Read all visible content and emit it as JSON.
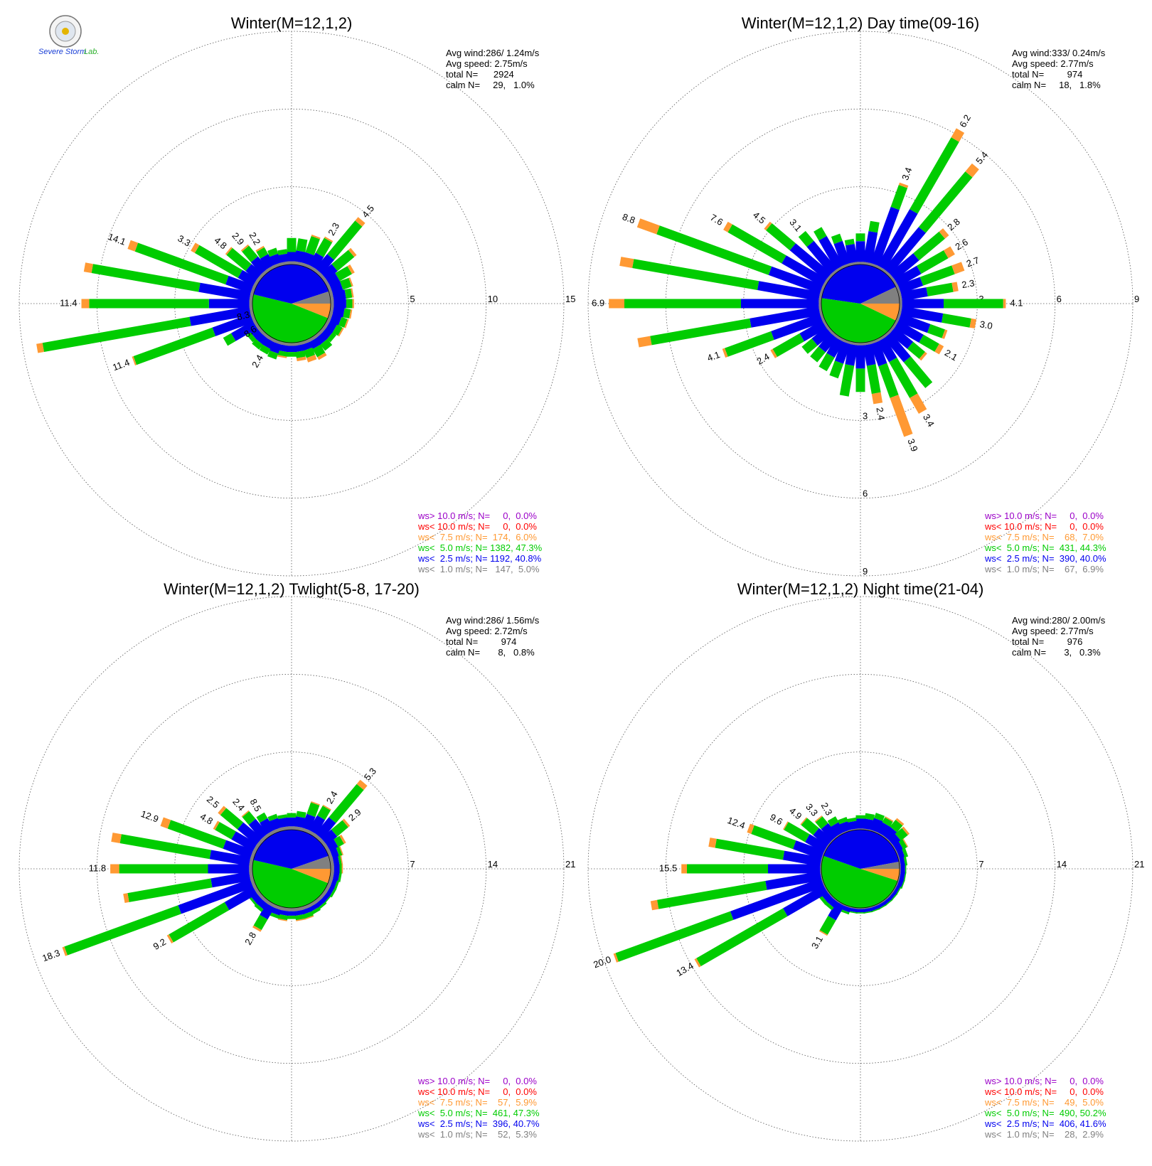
{
  "logo": {
    "text_main": "Severe Storm",
    "text_lab": "Lab."
  },
  "colors": {
    "ws_gt_10": "#9b00c8",
    "ws_lt_10": "#ff0000",
    "ws_lt_7_5": "#ff9933",
    "ws_lt_5": "#00cc00",
    "ws_lt_2_5": "#0000ee",
    "ws_lt_1": "#808080"
  },
  "chart_data": [
    {
      "type": "polar-bar",
      "title": "Winter(M=12,1,2)",
      "info": [
        "Avg wind:286/ 1.24m/s",
        "Avg speed: 2.75m/s",
        "total N=      2924",
        "calm N=     29,   1.0%"
      ],
      "rmax": 15,
      "ring_labels": [
        "5",
        "10",
        "15"
      ],
      "legend": [
        "ws> 10.0 m/s; N=     0,  0.0%",
        "ws< 10.0 m/s; N=     0,  0.0%",
        "ws<  7.5 m/s; N=  174,  6.0%",
        "ws<  5.0 m/s; N= 1382, 47.3%",
        "ws<  2.5 m/s; N= 1192, 40.8%",
        "ws<  1.0 m/s; N=   147,  5.0%"
      ],
      "pie": {
        "orange": 6.0,
        "green": 47.3,
        "blue": 40.8,
        "gray": 5.0
      },
      "direction_labels_deg": [
        30,
        40,
        300,
        310,
        320,
        330,
        235,
        250,
        270,
        290,
        255,
        210
      ],
      "bar_labels": [
        "2.3",
        "4.5",
        "3.3",
        "4.8",
        "2.9",
        "2.2",
        "8.6",
        "11.4",
        "11.4",
        "14.1",
        "8.3",
        "2.4"
      ],
      "directions": [
        0,
        10,
        20,
        30,
        40,
        50,
        60,
        70,
        80,
        90,
        100,
        110,
        120,
        130,
        140,
        150,
        160,
        170,
        180,
        190,
        200,
        210,
        220,
        230,
        240,
        250,
        260,
        270,
        280,
        290,
        300,
        310,
        320,
        330,
        340,
        350
      ],
      "bars": [
        [
          0.2,
          0.6,
          0.9,
          0
        ],
        [
          0.2,
          0.7,
          0.8,
          0
        ],
        [
          0.2,
          0.7,
          1.1,
          0.1
        ],
        [
          0.2,
          0.9,
          1.1,
          0.1
        ],
        [
          0.2,
          1.2,
          2.8,
          0.3
        ],
        [
          0.2,
          0.9,
          1.4,
          0.2
        ],
        [
          0.2,
          0.7,
          0.9,
          0.2
        ],
        [
          0.2,
          0.7,
          0.6,
          0.1
        ],
        [
          0.2,
          0.8,
          0.4,
          0.1
        ],
        [
          0.2,
          0.8,
          0.4,
          0.1
        ],
        [
          0.2,
          0.7,
          0.4,
          0.1
        ],
        [
          0.2,
          0.6,
          0.4,
          0.1
        ],
        [
          0.2,
          0.5,
          0.4,
          0.1
        ],
        [
          0.2,
          0.5,
          0.3,
          0
        ],
        [
          0.2,
          0.5,
          0.5,
          0
        ],
        [
          0.2,
          0.5,
          0.6,
          0.2
        ],
        [
          0.2,
          0.4,
          0.5,
          0.3
        ],
        [
          0.2,
          0.4,
          0.4,
          0.2
        ],
        [
          0.2,
          0.4,
          0.3,
          0
        ],
        [
          0.2,
          0.4,
          0.3,
          0.1
        ],
        [
          0.2,
          0.6,
          0.4,
          0
        ],
        [
          0.2,
          0.5,
          0.4,
          0
        ],
        [
          0.2,
          0.5,
          0.4,
          0
        ],
        [
          0.2,
          0.5,
          0.3,
          0
        ],
        [
          0.2,
          1.6,
          0.6,
          0
        ],
        [
          0.2,
          2.6,
          5.4,
          0.1
        ],
        [
          0.2,
          3.9,
          9.6,
          0.4
        ],
        [
          0.2,
          2.6,
          7.7,
          0.5
        ],
        [
          0.2,
          3.3,
          7.0,
          0.5
        ],
        [
          0.2,
          1.7,
          6.2,
          0.5
        ],
        [
          0.2,
          1.1,
          3.2,
          0.3
        ],
        [
          0.2,
          0.9,
          1.6,
          0.1
        ],
        [
          0.2,
          1.0,
          0.9,
          0.1
        ],
        [
          0.2,
          0.8,
          0.5,
          0.1
        ],
        [
          0.2,
          0.6,
          0.4,
          0
        ],
        [
          0.2,
          0.5,
          0.3,
          0
        ]
      ]
    },
    {
      "type": "polar-bar",
      "title": "Winter(M=12,1,2) Day time(09-16)",
      "info": [
        "Avg wind:333/ 0.24m/s",
        "Avg speed: 2.77m/s",
        "total N=         974",
        "calm N=     18,   1.8%"
      ],
      "rmax": 9,
      "ring_labels": [
        "3",
        "6",
        "9"
      ],
      "legend": [
        "ws> 10.0 m/s; N=     0,  0.0%",
        "ws< 10.0 m/s; N=     0,  0.0%",
        "ws<  7.5 m/s; N=    68,  7.0%",
        "ws<  5.0 m/s; N=  431, 44.3%",
        "ws<  2.5 m/s; N=  390, 40.0%",
        "ws<  1.0 m/s; N=    67,  6.9%"
      ],
      "pie": {
        "orange": 7.0,
        "green": 44.3,
        "blue": 40.0,
        "gray": 6.9
      },
      "direction_labels_deg": [
        20,
        30,
        40,
        50,
        60,
        70,
        80,
        90,
        100,
        120,
        150,
        160,
        170,
        240,
        250,
        270,
        290,
        300,
        310,
        320
      ],
      "bar_labels": [
        "3.4",
        "6.2",
        "5.4",
        "2.8",
        "2.6",
        "2.7",
        "2.3",
        "4.1",
        "3.0",
        "2.1",
        "3.4",
        "3.9",
        "2.4",
        "2.4",
        "4.1",
        "6.9",
        "8.8",
        "7.6",
        "4.5",
        "3.1"
      ],
      "directions": [
        0,
        10,
        20,
        30,
        40,
        50,
        60,
        70,
        80,
        90,
        100,
        110,
        120,
        130,
        140,
        150,
        160,
        170,
        180,
        190,
        200,
        210,
        220,
        230,
        240,
        250,
        260,
        270,
        280,
        290,
        300,
        310,
        320,
        330,
        340,
        350
      ],
      "bars": [
        [
          0.1,
          0.8,
          0.3,
          0
        ],
        [
          0.1,
          1.2,
          0.4,
          0
        ],
        [
          0.1,
          2.3,
          0.9,
          0.1
        ],
        [
          0.1,
          2.5,
          3.2,
          0.4
        ],
        [
          0.1,
          2.1,
          2.8,
          0.4
        ],
        [
          0.1,
          1.2,
          1.3,
          0.2
        ],
        [
          0.1,
          1.0,
          1.2,
          0.3
        ],
        [
          0.1,
          0.9,
          1.3,
          0.4
        ],
        [
          0.1,
          1.0,
          1.0,
          0.2
        ],
        [
          0.1,
          1.6,
          2.3,
          0.1
        ],
        [
          0.1,
          1.6,
          1.1,
          0.2
        ],
        [
          0.1,
          1.2,
          0.6,
          0.1
        ],
        [
          0.1,
          1.1,
          0.7,
          0.2
        ],
        [
          0.1,
          0.9,
          0.6,
          0.1
        ],
        [
          0.1,
          1.2,
          1.3,
          0
        ],
        [
          0.1,
          0.9,
          1.6,
          0.7
        ],
        [
          0.1,
          0.9,
          1.3,
          1.6
        ],
        [
          0.1,
          0.8,
          1.1,
          0.4
        ],
        [
          0.1,
          0.9,
          0.9,
          0
        ],
        [
          0.1,
          0.8,
          1.2,
          0
        ],
        [
          0.1,
          0.8,
          0.6,
          0
        ],
        [
          0.1,
          0.7,
          0.6,
          0
        ],
        [
          0.1,
          0.7,
          0.5,
          0
        ],
        [
          0.1,
          0.7,
          0.5,
          0
        ],
        [
          0.1,
          1.0,
          1.2,
          0.1
        ],
        [
          0.1,
          2.0,
          1.9,
          0.1
        ],
        [
          0.1,
          2.7,
          3.9,
          0.5
        ],
        [
          0.1,
          3.0,
          4.5,
          0.6
        ],
        [
          0.1,
          2.4,
          4.9,
          0.5
        ],
        [
          0.1,
          2.1,
          4.6,
          0.8
        ],
        [
          0.1,
          1.8,
          2.4,
          0.2
        ],
        [
          0.1,
          1.8,
          1.2,
          0.1
        ],
        [
          0.1,
          1.4,
          0.5,
          0
        ],
        [
          0.1,
          1.3,
          0.4,
          0
        ],
        [
          0.1,
          0.9,
          0.3,
          0
        ],
        [
          0.1,
          0.7,
          0.2,
          0
        ]
      ]
    },
    {
      "type": "polar-bar",
      "title": "Winter(M=12,1,2) Twlight(5-8, 17-20)",
      "info": [
        "Avg wind:286/ 1.56m/s",
        "Avg speed: 2.72m/s",
        "total N=         974",
        "calm N=       8,   0.8%"
      ],
      "rmax": 21,
      "ring_labels": [
        "7",
        "14",
        "21"
      ],
      "legend": [
        "ws> 10.0 m/s; N=     0,  0.0%",
        "ws< 10.0 m/s; N=     0,  0.0%",
        "ws<  7.5 m/s; N=    57,  5.9%",
        "ws<  5.0 m/s; N=  461, 47.3%",
        "ws<  2.5 m/s; N=  396, 40.7%",
        "ws<  1.0 m/s; N=    52,  5.3%"
      ],
      "pie": {
        "orange": 5.9,
        "green": 47.3,
        "blue": 40.7,
        "gray": 5.3
      },
      "direction_labels_deg": [
        30,
        40,
        50,
        300,
        310,
        320,
        330,
        290,
        270,
        250,
        240,
        210
      ],
      "bar_labels": [
        "2.4",
        "5.3",
        "2.9",
        "4.8",
        "2.5",
        "2.4",
        "8.5",
        "12.9",
        "11.8",
        "18.3",
        "9.2",
        "2.8"
      ],
      "directions": [
        0,
        10,
        20,
        30,
        40,
        50,
        60,
        70,
        80,
        90,
        100,
        110,
        120,
        130,
        140,
        150,
        160,
        170,
        180,
        190,
        200,
        210,
        220,
        230,
        240,
        250,
        260,
        270,
        280,
        290,
        300,
        310,
        320,
        330,
        340,
        350
      ],
      "bars": [
        [
          0.3,
          0.8,
          0.4,
          0
        ],
        [
          0.3,
          0.9,
          0.5,
          0
        ],
        [
          0.3,
          1.3,
          1.1,
          0.1
        ],
        [
          0.3,
          1.5,
          1.0,
          0.1
        ],
        [
          0.3,
          1.9,
          3.9,
          0.5
        ],
        [
          0.3,
          1.2,
          1.3,
          0.2
        ],
        [
          0.3,
          0.8,
          0.6,
          0.2
        ],
        [
          0.3,
          0.6,
          0.3,
          0.1
        ],
        [
          0.3,
          0.5,
          0.2,
          0.1
        ],
        [
          0.3,
          0.5,
          0.2,
          0.1
        ],
        [
          0.3,
          0.5,
          0.2,
          0
        ],
        [
          0.3,
          0.4,
          0.2,
          0
        ],
        [
          0.3,
          0.4,
          0.2,
          0
        ],
        [
          0.3,
          0.4,
          0.1,
          0
        ],
        [
          0.3,
          0.4,
          0.2,
          0
        ],
        [
          0.3,
          0.4,
          0.3,
          0
        ],
        [
          0.3,
          0.4,
          0.4,
          0.1
        ],
        [
          0.3,
          0.4,
          0.4,
          0.1
        ],
        [
          0.3,
          0.4,
          0.3,
          0
        ],
        [
          0.3,
          0.4,
          0.4,
          0.1
        ],
        [
          0.3,
          0.5,
          0.3,
          0
        ],
        [
          0.3,
          1.2,
          1.1,
          0.2
        ],
        [
          0.3,
          0.6,
          0.3,
          0
        ],
        [
          0.3,
          0.6,
          0.2,
          0
        ],
        [
          0.3,
          2.9,
          5.8,
          0.2
        ],
        [
          0.3,
          6.9,
          10.9,
          0.2
        ],
        [
          0.3,
          3.5,
          7.6,
          0.4
        ],
        [
          0.3,
          3.7,
          8.0,
          0.8
        ],
        [
          0.3,
          3.6,
          8.2,
          0.8
        ],
        [
          0.3,
          2.6,
          5.3,
          0.7
        ],
        [
          0.3,
          2.2,
          1.7,
          0.2
        ],
        [
          0.3,
          2.2,
          2.0,
          0.3
        ],
        [
          0.3,
          1.7,
          0.9,
          0.1
        ],
        [
          0.3,
          1.2,
          0.6,
          0
        ],
        [
          0.3,
          0.9,
          0.4,
          0
        ],
        [
          0.3,
          0.8,
          0.3,
          0
        ]
      ]
    },
    {
      "type": "polar-bar",
      "title": "Winter(M=12,1,2) Night time(21-04)",
      "info": [
        "Avg wind:280/ 2.00m/s",
        "Avg speed: 2.77m/s",
        "total N=         976",
        "calm N=       3,   0.3%"
      ],
      "rmax": 21,
      "ring_labels": [
        "7",
        "14",
        "21"
      ],
      "legend": [
        "ws> 10.0 m/s; N=     0,  0.0%",
        "ws< 10.0 m/s; N=     0,  0.0%",
        "ws<  7.5 m/s; N=    49,  5.0%",
        "ws<  5.0 m/s; N=  490, 50.2%",
        "ws<  2.5 m/s; N=  406, 41.6%",
        "ws<  1.0 m/s; N=    28,  2.9%"
      ],
      "pie": {
        "orange": 5.0,
        "green": 50.2,
        "blue": 41.6,
        "gray": 2.9
      },
      "direction_labels_deg": [
        310,
        320,
        330,
        300,
        290,
        270,
        250,
        240,
        210
      ],
      "bar_labels": [
        "4.9",
        "3.3",
        "2.3",
        "9.6",
        "12.4",
        "15.5",
        "20.0",
        "13.4",
        "3.1"
      ],
      "directions": [
        0,
        10,
        20,
        30,
        40,
        50,
        60,
        70,
        80,
        90,
        100,
        110,
        120,
        130,
        140,
        150,
        160,
        170,
        180,
        190,
        200,
        210,
        220,
        230,
        240,
        250,
        260,
        270,
        280,
        290,
        300,
        310,
        320,
        330,
        340,
        350
      ],
      "bars": [
        [
          0.1,
          0.9,
          0.3,
          0
        ],
        [
          0.1,
          0.9,
          0.5,
          0
        ],
        [
          0.1,
          1.1,
          0.5,
          0
        ],
        [
          0.1,
          1.0,
          0.5,
          0.1
        ],
        [
          0.1,
          1.0,
          0.8,
          0.2
        ],
        [
          0.1,
          0.8,
          0.8,
          0.2
        ],
        [
          0.1,
          0.6,
          0.4,
          0.1
        ],
        [
          0.1,
          0.5,
          0.3,
          0
        ],
        [
          0.1,
          0.4,
          0.2,
          0
        ],
        [
          0.1,
          0.4,
          0.1,
          0
        ],
        [
          0.1,
          0.4,
          0.1,
          0
        ],
        [
          0.1,
          0.4,
          0.1,
          0
        ],
        [
          0.1,
          0.3,
          0.1,
          0
        ],
        [
          0.1,
          0.3,
          0.1,
          0
        ],
        [
          0.1,
          0.3,
          0.1,
          0
        ],
        [
          0.1,
          0.3,
          0.1,
          0
        ],
        [
          0.1,
          0.3,
          0.1,
          0
        ],
        [
          0.1,
          0.3,
          0.1,
          0
        ],
        [
          0.1,
          0.3,
          0.1,
          0
        ],
        [
          0.1,
          0.3,
          0.1,
          0
        ],
        [
          0.1,
          0.4,
          0.2,
          0
        ],
        [
          0.1,
          1.5,
          1.5,
          0.1
        ],
        [
          0.1,
          0.6,
          0.3,
          0
        ],
        [
          0.1,
          0.6,
          0.3,
          0
        ],
        [
          0.1,
          4.2,
          9.0,
          0.2
        ],
        [
          0.1,
          8.7,
          11.0,
          0.2
        ],
        [
          0.1,
          5.0,
          9.9,
          0.6
        ],
        [
          0.1,
          4.7,
          7.3,
          0.5
        ],
        [
          0.1,
          3.4,
          6.2,
          0.6
        ],
        [
          0.1,
          2.7,
          4.0,
          0.4
        ],
        [
          0.1,
          1.9,
          2.2,
          0.1
        ],
        [
          0.1,
          1.6,
          1.4,
          0.1
        ],
        [
          0.1,
          1.4,
          0.8,
          0.1
        ],
        [
          0.1,
          1.0,
          0.6,
          0
        ],
        [
          0.1,
          0.8,
          0.4,
          0
        ],
        [
          0.1,
          0.7,
          0.3,
          0
        ]
      ]
    }
  ]
}
